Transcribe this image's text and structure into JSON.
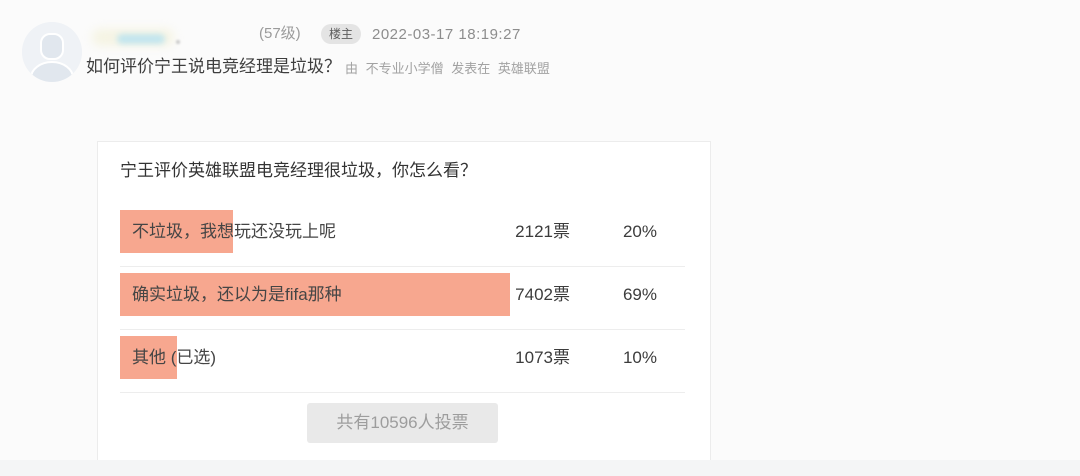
{
  "post": {
    "level": "(57级)",
    "badge": "楼主",
    "timestamp": "2022-03-17 18:19:27",
    "title": "如何评价宁王说电竞经理是垃圾？",
    "byline_prefix": "由",
    "author": "不专业小学僧",
    "byline_verb": "发表在",
    "forum": "英雄联盟"
  },
  "poll": {
    "question": "宁王评价英雄联盟电竞经理很垃圾，你怎么看？",
    "options": [
      {
        "label": "不垃圾，我想玩还没玩上呢",
        "votes": "2121票",
        "percent": "20%",
        "percent_value": 20
      },
      {
        "label": "确实垃圾，还以为是fifa那种",
        "votes": "7402票",
        "percent": "69%",
        "percent_value": 69
      },
      {
        "label": "其他 (已选)",
        "votes": "1073票",
        "percent": "10%",
        "percent_value": 10
      }
    ],
    "total_button": "共有10596人投票",
    "bar_color": "#f7a78f"
  }
}
